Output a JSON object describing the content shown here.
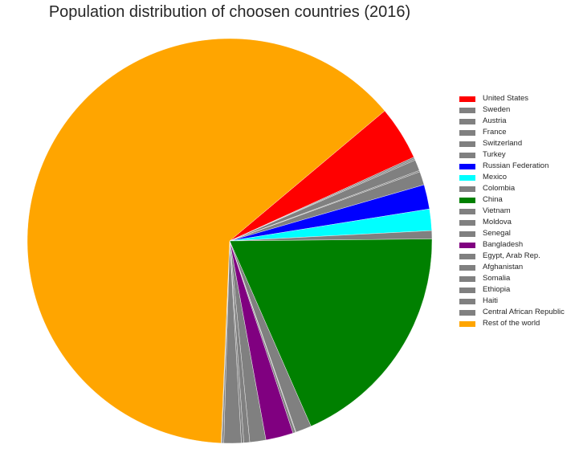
{
  "chart_data": {
    "type": "pie",
    "title": "Population distribution of choosen countries (2016)",
    "start_angle_deg": 40,
    "direction": "clockwise",
    "legend_placement": "right",
    "slices": [
      {
        "label": "United States",
        "value": 4.3,
        "color": "#ff0000"
      },
      {
        "label": "Sweden",
        "value": 0.13,
        "color": "#808080"
      },
      {
        "label": "Austria",
        "value": 0.12,
        "color": "#808080"
      },
      {
        "label": "France",
        "value": 0.88,
        "color": "#808080"
      },
      {
        "label": "Switzerland",
        "value": 0.11,
        "color": "#808080"
      },
      {
        "label": "Turkey",
        "value": 1.07,
        "color": "#808080"
      },
      {
        "label": "Russian Federation",
        "value": 1.94,
        "color": "#0000ff"
      },
      {
        "label": "Mexico",
        "value": 1.71,
        "color": "#00ffff"
      },
      {
        "label": "Colombia",
        "value": 0.65,
        "color": "#808080"
      },
      {
        "label": "China",
        "value": 18.5,
        "color": "#008000"
      },
      {
        "label": "Vietnam",
        "value": 1.26,
        "color": "#808080"
      },
      {
        "label": "Moldova",
        "value": 0.05,
        "color": "#808080"
      },
      {
        "label": "Senegal",
        "value": 0.2,
        "color": "#808080"
      },
      {
        "label": "Bangladesh",
        "value": 2.19,
        "color": "#800080"
      },
      {
        "label": "Egypt, Arab Rep.",
        "value": 1.28,
        "color": "#808080"
      },
      {
        "label": "Afghanistan",
        "value": 0.47,
        "color": "#808080"
      },
      {
        "label": "Somalia",
        "value": 0.19,
        "color": "#808080"
      },
      {
        "label": "Ethiopia",
        "value": 1.38,
        "color": "#808080"
      },
      {
        "label": "Haiti",
        "value": 0.15,
        "color": "#808080"
      },
      {
        "label": "Central African Republic",
        "value": 0.06,
        "color": "#808080"
      },
      {
        "label": "Rest of the world",
        "value": 62.96,
        "color": "#ffa500"
      }
    ]
  }
}
